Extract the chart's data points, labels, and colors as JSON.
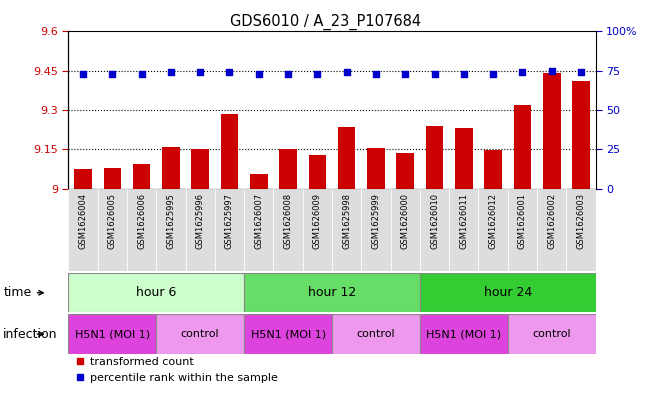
{
  "title": "GDS6010 / A_23_P107684",
  "samples": [
    "GSM1626004",
    "GSM1626005",
    "GSM1626006",
    "GSM1625995",
    "GSM1625996",
    "GSM1625997",
    "GSM1626007",
    "GSM1626008",
    "GSM1626009",
    "GSM1625998",
    "GSM1625999",
    "GSM1626000",
    "GSM1626010",
    "GSM1626011",
    "GSM1626012",
    "GSM1626001",
    "GSM1626002",
    "GSM1626003"
  ],
  "bar_values": [
    9.075,
    9.08,
    9.095,
    9.16,
    9.15,
    9.285,
    9.055,
    9.15,
    9.13,
    9.235,
    9.155,
    9.135,
    9.24,
    9.23,
    9.148,
    9.32,
    9.44,
    9.41
  ],
  "percentile_values": [
    73,
    73,
    73,
    74,
    74,
    74,
    73,
    73,
    73,
    74,
    73,
    73,
    73,
    73,
    73,
    74,
    75,
    74
  ],
  "bar_color": "#cc0000",
  "percentile_color": "#0000cc",
  "ymin": 9.0,
  "ymax": 9.6,
  "yticks": [
    9.0,
    9.15,
    9.3,
    9.45,
    9.6
  ],
  "ytick_labels": [
    "9",
    "9.15",
    "9.3",
    "9.45",
    "9.6"
  ],
  "y2min": 0,
  "y2max": 100,
  "y2ticks": [
    0,
    25,
    50,
    75,
    100
  ],
  "y2tick_labels": [
    "0",
    "25",
    "50",
    "75",
    "100%"
  ],
  "dotted_lines": [
    9.15,
    9.3,
    9.45
  ],
  "time_groups": [
    {
      "label": "hour 6",
      "start": 0,
      "end": 6,
      "color": "#ccffcc"
    },
    {
      "label": "hour 12",
      "start": 6,
      "end": 12,
      "color": "#66dd66"
    },
    {
      "label": "hour 24",
      "start": 12,
      "end": 18,
      "color": "#33cc33"
    }
  ],
  "infection_groups": [
    {
      "label": "H5N1 (MOI 1)",
      "start": 0,
      "end": 3,
      "color": "#dd44dd"
    },
    {
      "label": "control",
      "start": 3,
      "end": 6,
      "color": "#ee99ee"
    },
    {
      "label": "H5N1 (MOI 1)",
      "start": 6,
      "end": 9,
      "color": "#dd44dd"
    },
    {
      "label": "control",
      "start": 9,
      "end": 12,
      "color": "#ee99ee"
    },
    {
      "label": "H5N1 (MOI 1)",
      "start": 12,
      "end": 15,
      "color": "#dd44dd"
    },
    {
      "label": "control",
      "start": 15,
      "end": 18,
      "color": "#ee99ee"
    }
  ],
  "time_label": "time",
  "infection_label": "infection",
  "legend_bar_label": "transformed count",
  "legend_dot_label": "percentile rank within the sample",
  "bar_color_left": "#cc0000",
  "tick_label_color_left": "#cc0000",
  "tick_label_color_right": "#0000cc",
  "sample_bg_color": "#dddddd",
  "plot_bg_color": "#ffffff"
}
